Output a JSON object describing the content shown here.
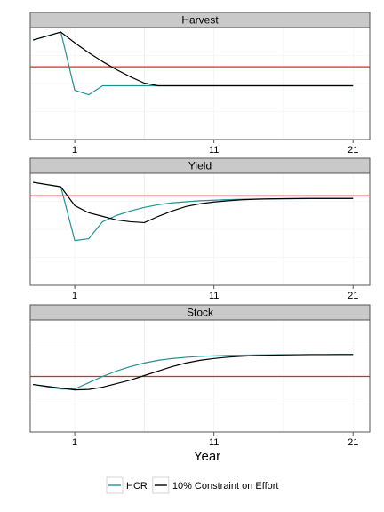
{
  "chart_data": {
    "type": "line",
    "layout": "faceted-vertical",
    "xlabel": "Year",
    "x_ticks": [
      1,
      11,
      21
    ],
    "xlim": [
      -2.2,
      22.2
    ],
    "grid": true,
    "legend_position": "bottom",
    "colors": {
      "HCR": "#1f9296",
      "10% Constraint on Effort": "#000000",
      "reference_line": "#e8202a",
      "strip_fill": "#c9c9c9",
      "panel_border": "#555555",
      "grid": "#efefef"
    },
    "series_names": [
      "HCR",
      "10% Constraint on Effort"
    ],
    "panels": [
      {
        "title": "Harvest",
        "ylim": [
          0,
          100
        ],
        "reference": 65,
        "series": [
          {
            "name": "HCR",
            "x": [
              -2,
              0,
              1,
              2,
              3,
              4,
              5,
              6,
              7,
              8,
              9,
              10,
              11,
              12,
              13,
              14,
              15,
              16,
              17,
              18,
              19,
              20,
              21
            ],
            "values": [
              88.8,
              96.0,
              44.0,
              40.0,
              48.0,
              48.0,
              48.0,
              48.0,
              48.0,
              48.0,
              48.0,
              48.0,
              48.0,
              48.0,
              48.0,
              48.0,
              48.0,
              48.0,
              48.0,
              48.0,
              48.0,
              48.0,
              48.0
            ]
          },
          {
            "name": "10% Constraint on Effort",
            "x": [
              -2,
              0,
              1,
              2,
              3,
              4,
              5,
              6,
              7,
              8,
              9,
              10,
              11,
              12,
              13,
              14,
              15,
              16,
              17,
              18,
              19,
              20,
              21
            ],
            "values": [
              88.8,
              96.0,
              86.4,
              77.6,
              69.6,
              62.4,
              56.0,
              50.4,
              48.0,
              48.0,
              48.0,
              48.0,
              48.0,
              48.0,
              48.0,
              48.0,
              48.0,
              48.0,
              48.0,
              48.0,
              48.0,
              48.0,
              48.0
            ]
          }
        ]
      },
      {
        "title": "Yield",
        "ylim": [
          0,
          100
        ],
        "reference": 80,
        "series": [
          {
            "name": "HCR",
            "x": [
              -2,
              0,
              1,
              2,
              3,
              4,
              5,
              6,
              7,
              8,
              9,
              10,
              11,
              12,
              13,
              14,
              15,
              16,
              17,
              18,
              19,
              20,
              21
            ],
            "values": [
              92.0,
              88.0,
              40.0,
              41.6,
              56.8,
              62.4,
              66.4,
              69.6,
              72.0,
              73.6,
              74.6,
              75.5,
              76.0,
              76.5,
              76.8,
              77.0,
              77.2,
              77.3,
              77.4,
              77.5,
              77.5,
              77.6,
              77.6
            ]
          },
          {
            "name": "10% Constraint on Effort",
            "x": [
              -2,
              0,
              1,
              2,
              3,
              4,
              5,
              6,
              7,
              8,
              9,
              10,
              11,
              12,
              13,
              14,
              15,
              16,
              17,
              18,
              19,
              20,
              21
            ],
            "values": [
              92.0,
              88.0,
              71.2,
              64.8,
              61.6,
              58.4,
              56.8,
              56.0,
              61.6,
              66.4,
              70.4,
              72.8,
              74.4,
              75.5,
              76.4,
              76.9,
              77.2,
              77.4,
              77.5,
              77.6,
              77.6,
              77.6,
              77.6
            ]
          }
        ]
      },
      {
        "title": "Stock",
        "ylim": [
          0,
          100
        ],
        "reference": 49.6,
        "series": [
          {
            "name": "HCR",
            "x": [
              -2,
              0,
              1,
              2,
              3,
              4,
              5,
              6,
              7,
              8,
              9,
              10,
              11,
              12,
              13,
              14,
              15,
              16,
              17,
              18,
              19,
              20,
              21
            ],
            "values": [
              42.4,
              38.4,
              38.4,
              44.0,
              49.6,
              54.4,
              58.4,
              61.6,
              64.0,
              65.6,
              66.7,
              67.5,
              68.0,
              68.4,
              68.6,
              68.8,
              68.9,
              69.0,
              69.0,
              69.1,
              69.1,
              69.2,
              69.2
            ]
          },
          {
            "name": "10% Constraint on Effort",
            "x": [
              -2,
              0,
              1,
              2,
              3,
              4,
              5,
              6,
              7,
              8,
              9,
              10,
              11,
              12,
              13,
              14,
              15,
              16,
              17,
              18,
              19,
              20,
              21
            ],
            "values": [
              42.4,
              39.2,
              37.6,
              38.0,
              40.0,
              43.2,
              46.4,
              50.4,
              54.4,
              58.4,
              61.6,
              64.0,
              65.6,
              66.8,
              67.6,
              68.2,
              68.6,
              68.8,
              69.0,
              69.1,
              69.1,
              69.2,
              69.2
            ]
          }
        ]
      }
    ]
  }
}
